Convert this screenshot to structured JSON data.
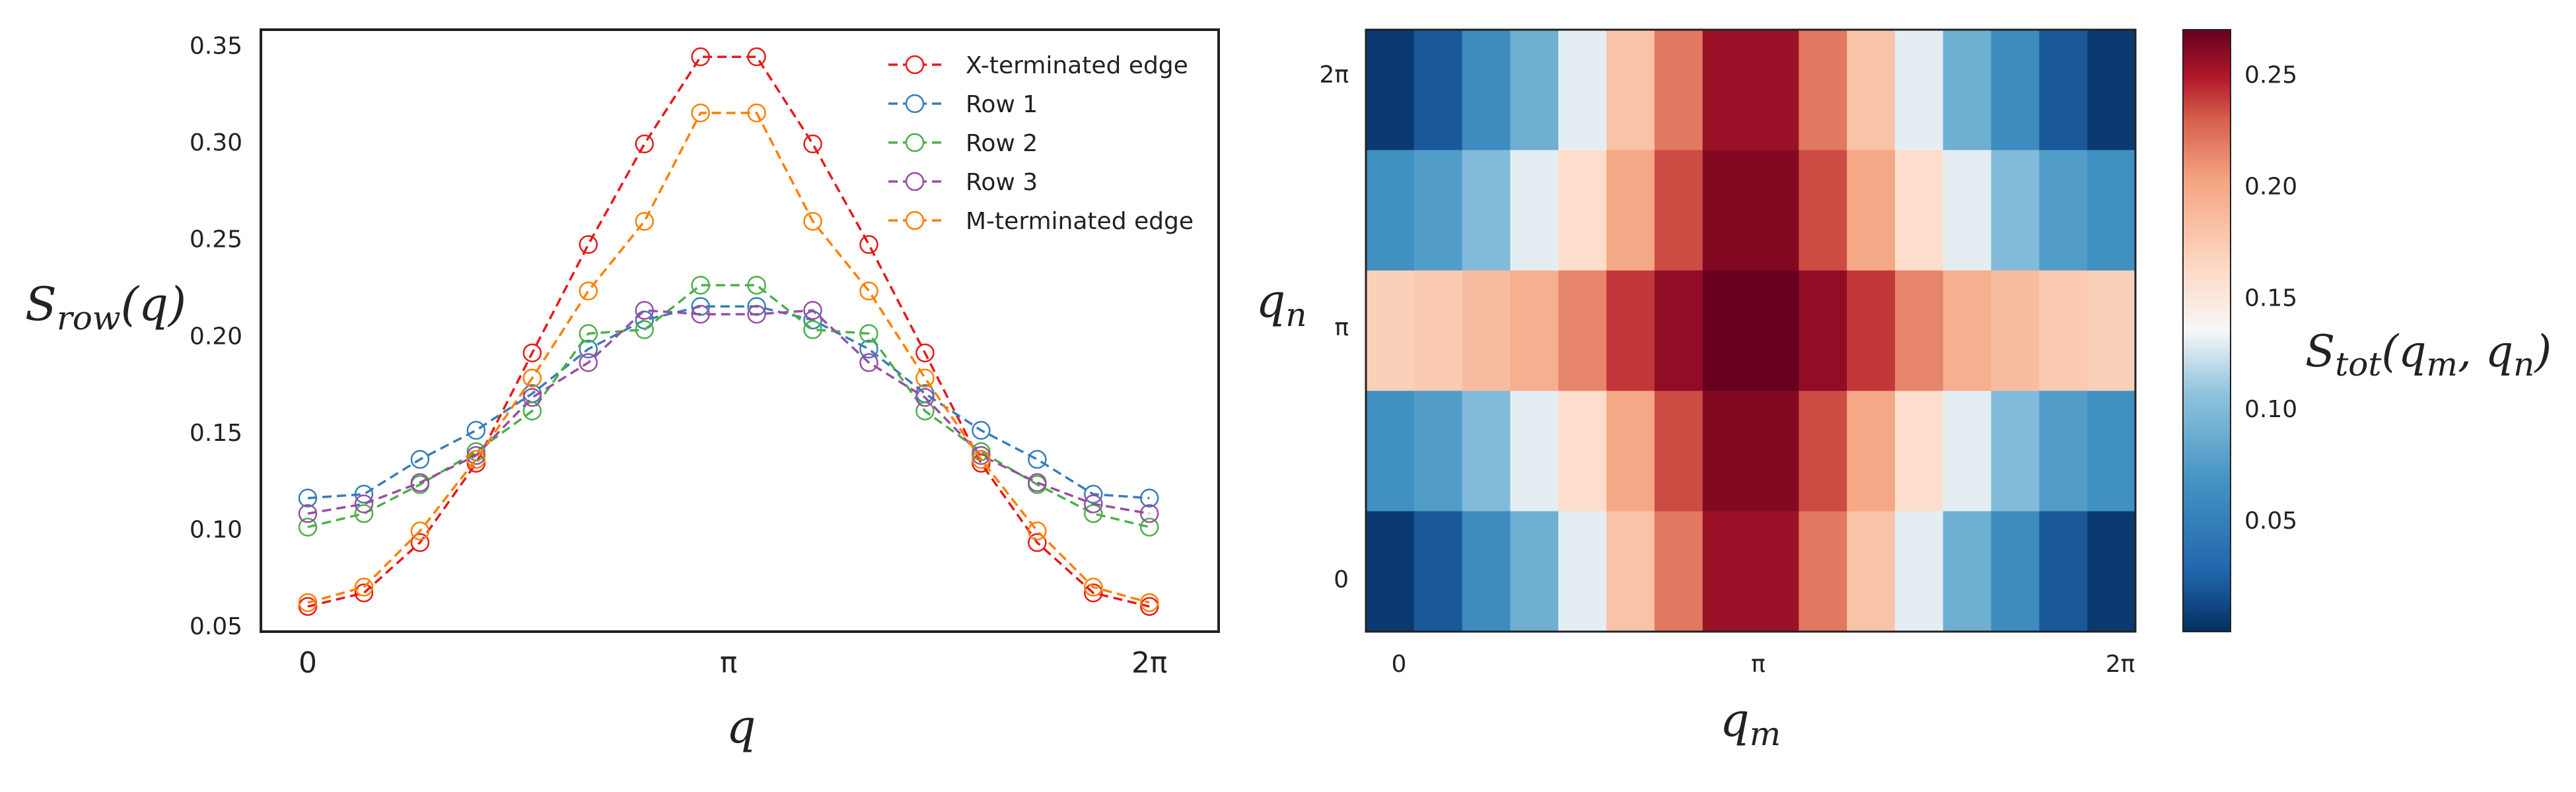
{
  "chart_data": [
    {
      "type": "line",
      "ylabel": "S_row(q)",
      "xlabel": "q",
      "xlim": [
        -0.35,
        6.8
      ],
      "ylim": [
        0.047,
        0.358
      ],
      "x_ticks": [
        {
          "value": 0,
          "label": "0"
        },
        {
          "value": 3.14159,
          "label": "π"
        },
        {
          "value": 6.28318,
          "label": "2π"
        }
      ],
      "y_ticks": [
        {
          "value": 0.05,
          "label": "0.05"
        },
        {
          "value": 0.1,
          "label": "0.10"
        },
        {
          "value": 0.15,
          "label": "0.15"
        },
        {
          "value": 0.2,
          "label": "0.20"
        },
        {
          "value": 0.25,
          "label": "0.25"
        },
        {
          "value": 0.3,
          "label": "0.30"
        },
        {
          "value": 0.35,
          "label": "0.35"
        }
      ],
      "grid": false,
      "legend_position": "top-right",
      "x": [
        0,
        0.4189,
        0.8378,
        1.2566,
        1.6755,
        2.0944,
        2.5133,
        2.9322,
        3.351,
        3.7699,
        4.1888,
        4.6077,
        5.0265,
        5.4454,
        5.8643,
        6.2832
      ],
      "series": [
        {
          "name": "X-terminated edge",
          "color": "#e41a1c",
          "values": [
            0.06,
            0.067,
            0.093,
            0.134,
            0.191,
            0.247,
            0.299,
            0.344,
            0.344,
            0.299,
            0.247,
            0.191,
            0.134,
            0.093,
            0.067,
            0.06
          ]
        },
        {
          "name": "Row 1",
          "color": "#377eb8",
          "values": [
            0.116,
            0.118,
            0.136,
            0.151,
            0.17,
            0.193,
            0.208,
            0.215,
            0.215,
            0.208,
            0.193,
            0.17,
            0.151,
            0.136,
            0.118,
            0.116
          ]
        },
        {
          "name": "Row 2",
          "color": "#4daf4a",
          "values": [
            0.101,
            0.108,
            0.123,
            0.14,
            0.161,
            0.201,
            0.203,
            0.226,
            0.226,
            0.203,
            0.201,
            0.161,
            0.14,
            0.123,
            0.108,
            0.101
          ]
        },
        {
          "name": "Row 3",
          "color": "#984ea3",
          "values": [
            0.108,
            0.113,
            0.124,
            0.138,
            0.168,
            0.186,
            0.213,
            0.211,
            0.211,
            0.213,
            0.186,
            0.168,
            0.138,
            0.124,
            0.113,
            0.108
          ]
        },
        {
          "name": "M-terminated edge",
          "color": "#ff7f00",
          "values": [
            0.062,
            0.07,
            0.099,
            0.136,
            0.178,
            0.223,
            0.259,
            0.315,
            0.315,
            0.259,
            0.223,
            0.178,
            0.136,
            0.099,
            0.07,
            0.062
          ]
        }
      ]
    },
    {
      "type": "heatmap",
      "xlabel": "q_m",
      "ylabel": "q_n",
      "colorbar_label": "S_tot(q_m, q_n)",
      "colormap": "RdBu_r",
      "vmin": 0.0,
      "vmax": 0.27,
      "x_ticks": [
        {
          "value": 0,
          "label": "0"
        },
        {
          "value": 3.14159,
          "label": "π"
        },
        {
          "value": 6.28318,
          "label": "2π"
        }
      ],
      "y_ticks": [
        {
          "value": 0,
          "label": "0"
        },
        {
          "value": 3.14159,
          "label": "π"
        },
        {
          "value": 6.28318,
          "label": "2π"
        }
      ],
      "colorbar_ticks": [
        {
          "value": 0.05,
          "label": "0.05"
        },
        {
          "value": 0.1,
          "label": "0.10"
        },
        {
          "value": 0.15,
          "label": "0.15"
        },
        {
          "value": 0.2,
          "label": "0.20"
        },
        {
          "value": 0.25,
          "label": "0.25"
        }
      ],
      "rows_top_to_bottom": [
        [
          0.005,
          0.02,
          0.06,
          0.09,
          0.13,
          0.18,
          0.22,
          0.255,
          0.255,
          0.22,
          0.18,
          0.13,
          0.09,
          0.06,
          0.02,
          0.005
        ],
        [
          0.065,
          0.075,
          0.1,
          0.13,
          0.16,
          0.2,
          0.235,
          0.262,
          0.262,
          0.235,
          0.2,
          0.16,
          0.13,
          0.1,
          0.075,
          0.065
        ],
        [
          0.17,
          0.175,
          0.185,
          0.195,
          0.215,
          0.24,
          0.258,
          0.272,
          0.272,
          0.258,
          0.24,
          0.215,
          0.195,
          0.185,
          0.175,
          0.17
        ],
        [
          0.065,
          0.075,
          0.1,
          0.13,
          0.16,
          0.2,
          0.235,
          0.262,
          0.262,
          0.235,
          0.2,
          0.16,
          0.13,
          0.1,
          0.075,
          0.065
        ],
        [
          0.005,
          0.02,
          0.06,
          0.09,
          0.13,
          0.18,
          0.22,
          0.255,
          0.255,
          0.22,
          0.18,
          0.13,
          0.09,
          0.06,
          0.02,
          0.005
        ]
      ]
    }
  ]
}
